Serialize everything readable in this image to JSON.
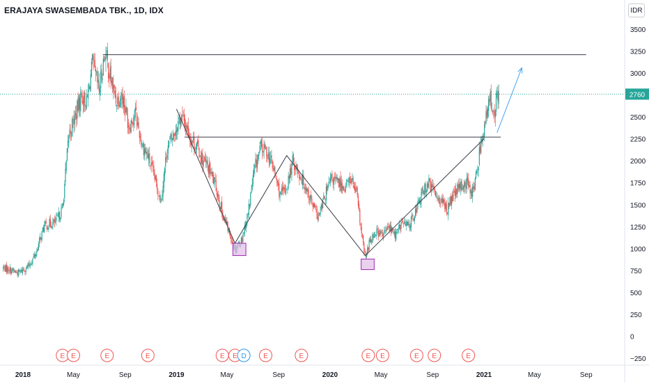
{
  "chart_title": "ERAJAYA SWASEMBADA TBK., 1D, IDX",
  "currency_button": "IDR",
  "colors": {
    "up": "#26a69a",
    "down": "#ef5350",
    "price_line": "#26a69a",
    "trendline": "#363a45",
    "box_fill": "#e1bee7",
    "box_stroke": "#9c27b0",
    "projection_arrow": "#42a5f5",
    "earnings": "#ef5350",
    "dividend": "#2196f3"
  },
  "chart_data": {
    "type": "candlestick",
    "title": "ERAJAYA SWASEMBADA TBK., 1D, IDX",
    "ylim": [
      -320,
      3620
    ],
    "y_ticks": [
      3500,
      3250,
      3000,
      2750,
      2500,
      2250,
      2000,
      1750,
      1500,
      1250,
      1000,
      750,
      500,
      250,
      0,
      -250
    ],
    "y_tick_labels": [
      "3500",
      "3250",
      "3000",
      "2750",
      "2500",
      "2250",
      "2000",
      "1750",
      "1500",
      "1250",
      "1000",
      "750",
      "500",
      "250",
      "0",
      "−250"
    ],
    "x_ticks": [
      {
        "label": "2018",
        "date": "2018-01-01"
      },
      {
        "label": "May",
        "date": "2018-05-01"
      },
      {
        "label": "Sep",
        "date": "2018-09-01"
      },
      {
        "label": "2019",
        "date": "2019-01-01"
      },
      {
        "label": "May",
        "date": "2019-05-01"
      },
      {
        "label": "Sep",
        "date": "2019-09-01"
      },
      {
        "label": "2020",
        "date": "2020-01-01"
      },
      {
        "label": "May",
        "date": "2020-05-01"
      },
      {
        "label": "Sep",
        "date": "2020-09-01"
      },
      {
        "label": "2021",
        "date": "2021-01-01"
      },
      {
        "label": "May",
        "date": "2021-05-01"
      },
      {
        "label": "Sep",
        "date": "2021-09-01"
      }
    ],
    "last_price": 2760,
    "last_price_label": "2760",
    "price_path": [
      [
        "2017-11-15",
        780
      ],
      [
        "2017-12-01",
        760
      ],
      [
        "2017-12-20",
        720
      ],
      [
        "2018-01-15",
        800
      ],
      [
        "2018-02-01",
        950
      ],
      [
        "2018-02-20",
        1250
      ],
      [
        "2018-03-05",
        1280
      ],
      [
        "2018-03-20",
        1300
      ],
      [
        "2018-04-05",
        1450
      ],
      [
        "2018-04-20",
        2300
      ],
      [
        "2018-05-05",
        2500
      ],
      [
        "2018-05-20",
        2750
      ],
      [
        "2018-06-01",
        2650
      ],
      [
        "2018-06-15",
        3100
      ],
      [
        "2018-07-01",
        2800
      ],
      [
        "2018-07-15",
        3250
      ],
      [
        "2018-07-25",
        3000
      ],
      [
        "2018-08-10",
        2700
      ],
      [
        "2018-08-25",
        2750
      ],
      [
        "2018-09-10",
        2400
      ],
      [
        "2018-09-25",
        2550
      ],
      [
        "2018-10-10",
        2200
      ],
      [
        "2018-10-25",
        2050
      ],
      [
        "2018-11-10",
        1800
      ],
      [
        "2018-11-25",
        1550
      ],
      [
        "2018-12-10",
        2150
      ],
      [
        "2018-12-25",
        2300
      ],
      [
        "2019-01-10",
        2500
      ],
      [
        "2019-01-20",
        2450
      ],
      [
        "2019-02-05",
        2250
      ],
      [
        "2019-02-20",
        2150
      ],
      [
        "2019-03-05",
        2000
      ],
      [
        "2019-03-20",
        1900
      ],
      [
        "2019-04-05",
        1700
      ],
      [
        "2019-04-20",
        1400
      ],
      [
        "2019-05-05",
        1200
      ],
      [
        "2019-05-20",
        1000
      ],
      [
        "2019-06-05",
        1100
      ],
      [
        "2019-06-20",
        1400
      ],
      [
        "2019-07-05",
        1900
      ],
      [
        "2019-07-20",
        2150
      ],
      [
        "2019-08-05",
        2100
      ],
      [
        "2019-08-20",
        1900
      ],
      [
        "2019-09-05",
        1600
      ],
      [
        "2019-09-20",
        1700
      ],
      [
        "2019-10-05",
        2000
      ],
      [
        "2019-10-20",
        1850
      ],
      [
        "2019-11-05",
        1700
      ],
      [
        "2019-11-20",
        1500
      ],
      [
        "2019-12-05",
        1350
      ],
      [
        "2019-12-20",
        1600
      ],
      [
        "2020-01-05",
        1800
      ],
      [
        "2020-01-20",
        1750
      ],
      [
        "2020-02-05",
        1700
      ],
      [
        "2020-02-20",
        1800
      ],
      [
        "2020-03-05",
        1600
      ],
      [
        "2020-03-15",
        1200
      ],
      [
        "2020-03-25",
        880
      ],
      [
        "2020-04-05",
        1100
      ],
      [
        "2020-04-20",
        1200
      ],
      [
        "2020-05-05",
        1150
      ],
      [
        "2020-05-20",
        1250
      ],
      [
        "2020-06-05",
        1150
      ],
      [
        "2020-06-20",
        1300
      ],
      [
        "2020-07-05",
        1250
      ],
      [
        "2020-07-20",
        1400
      ],
      [
        "2020-08-05",
        1600
      ],
      [
        "2020-08-20",
        1750
      ],
      [
        "2020-09-05",
        1650
      ],
      [
        "2020-09-20",
        1550
      ],
      [
        "2020-10-05",
        1450
      ],
      [
        "2020-10-20",
        1600
      ],
      [
        "2020-11-05",
        1700
      ],
      [
        "2020-11-20",
        1750
      ],
      [
        "2020-12-05",
        1650
      ],
      [
        "2020-12-15",
        1850
      ],
      [
        "2020-12-25",
        2250
      ],
      [
        "2021-01-05",
        2450
      ],
      [
        "2021-01-15",
        2700
      ],
      [
        "2021-01-25",
        2600
      ],
      [
        "2021-02-05",
        2760
      ]
    ],
    "horizontal_lines": [
      {
        "value": 3210,
        "from": "2018-07-10",
        "to": "2021-09-01"
      },
      {
        "value": 2270,
        "from": "2019-01-20",
        "to": "2021-02-10"
      }
    ],
    "trendline_points": [
      [
        "2019-01-01",
        2590
      ],
      [
        "2019-05-20",
        1060
      ],
      [
        "2019-09-20",
        2060
      ],
      [
        "2020-03-25",
        920
      ],
      [
        "2021-01-01",
        2250
      ]
    ],
    "boxes": [
      {
        "from": "2019-05-15",
        "to": "2019-06-15",
        "low": 920,
        "high": 1060
      },
      {
        "from": "2020-03-15",
        "to": "2020-04-15",
        "low": 760,
        "high": 880
      }
    ],
    "projection_arrow": {
      "from": [
        "2021-02-01",
        2320
      ],
      "to": [
        "2021-04-01",
        3060
      ]
    },
    "events": [
      {
        "label": "E",
        "date": "2018-04-05",
        "kind": "earnings"
      },
      {
        "label": "E",
        "date": "2018-05-01",
        "kind": "earnings"
      },
      {
        "label": "E",
        "date": "2018-07-20",
        "kind": "earnings"
      },
      {
        "label": "E",
        "date": "2018-10-25",
        "kind": "earnings"
      },
      {
        "label": "E",
        "date": "2019-04-20",
        "kind": "earnings"
      },
      {
        "label": "E",
        "date": "2019-05-20",
        "kind": "earnings"
      },
      {
        "label": "D",
        "date": "2019-06-10",
        "kind": "dividend"
      },
      {
        "label": "E",
        "date": "2019-08-01",
        "kind": "earnings"
      },
      {
        "label": "E",
        "date": "2019-10-25",
        "kind": "earnings"
      },
      {
        "label": "E",
        "date": "2020-04-01",
        "kind": "earnings"
      },
      {
        "label": "E",
        "date": "2020-05-05",
        "kind": "earnings"
      },
      {
        "label": "E",
        "date": "2020-07-25",
        "kind": "earnings"
      },
      {
        "label": "E",
        "date": "2020-09-05",
        "kind": "earnings"
      },
      {
        "label": "E",
        "date": "2020-11-25",
        "kind": "earnings"
      }
    ]
  }
}
